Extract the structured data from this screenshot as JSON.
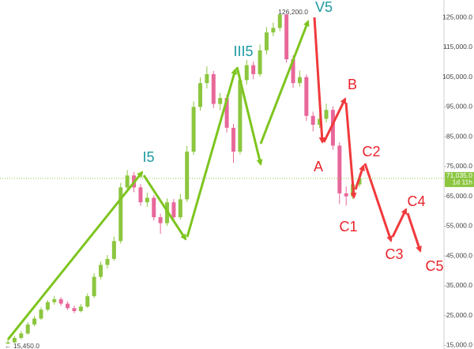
{
  "chart_data": {
    "type": "candlestick",
    "candles": [
      [
        15600,
        16900,
        15450,
        16000
      ],
      [
        16000,
        18200,
        15800,
        17500
      ],
      [
        17500,
        19800,
        17000,
        19000
      ],
      [
        19000,
        22800,
        18600,
        22000
      ],
      [
        22000,
        24900,
        21400,
        24000
      ],
      [
        24000,
        27800,
        23500,
        27000
      ],
      [
        27000,
        30200,
        26400,
        29500
      ],
      [
        29500,
        31600,
        28700,
        30500
      ],
      [
        30500,
        31200,
        28300,
        29000
      ],
      [
        29000,
        29800,
        26900,
        27500
      ],
      [
        27500,
        28300,
        25800,
        26500
      ],
      [
        26500,
        28900,
        26100,
        28000
      ],
      [
        28000,
        32400,
        27600,
        31500
      ],
      [
        31500,
        39200,
        31000,
        38000
      ],
      [
        38000,
        43100,
        37200,
        42000
      ],
      [
        42000,
        45300,
        40800,
        44000
      ],
      [
        44000,
        51500,
        43400,
        50000
      ],
      [
        50000,
        69500,
        49200,
        68000
      ],
      [
        68000,
        73800,
        66500,
        72000
      ],
      [
        72000,
        73200,
        66400,
        68000
      ],
      [
        68000,
        69100,
        61800,
        63000
      ],
      [
        63000,
        66200,
        61500,
        64500
      ],
      [
        64500,
        65400,
        56900,
        58000
      ],
      [
        58000,
        59200,
        52400,
        56000
      ],
      [
        56000,
        64300,
        55100,
        63000
      ],
      [
        63000,
        64100,
        56800,
        58000
      ],
      [
        58000,
        65800,
        57200,
        64000
      ],
      [
        64000,
        81900,
        63100,
        80000
      ],
      [
        80000,
        96800,
        78900,
        95000
      ],
      [
        95000,
        104900,
        93800,
        103000
      ],
      [
        103000,
        108600,
        101200,
        106000
      ],
      [
        106000,
        107100,
        94600,
        96000
      ],
      [
        96000,
        99700,
        93900,
        98000
      ],
      [
        98000,
        99100,
        86400,
        88000
      ],
      [
        88000,
        89300,
        76200,
        80000
      ],
      [
        80000,
        105600,
        79100,
        104000
      ],
      [
        104000,
        110800,
        102500,
        109000
      ],
      [
        109000,
        110200,
        104300,
        106000
      ],
      [
        106000,
        115900,
        105200,
        114000
      ],
      [
        114000,
        121800,
        112600,
        120000
      ],
      [
        120000,
        123300,
        118700,
        121500
      ],
      [
        121500,
        126200,
        120400,
        126000
      ],
      [
        126000,
        126100,
        109800,
        111000
      ],
      [
        111000,
        112300,
        101400,
        103000
      ],
      [
        103000,
        107200,
        101800,
        105000
      ],
      [
        105000,
        105900,
        90300,
        92000
      ],
      [
        92000,
        93400,
        86800,
        89000
      ],
      [
        89000,
        92600,
        87900,
        91000
      ],
      [
        91000,
        96100,
        89800,
        94000
      ],
      [
        94000,
        95200,
        80600,
        82000
      ],
      [
        82000,
        83100,
        62400,
        66000
      ],
      [
        66000,
        68300,
        61900,
        65000
      ],
      [
        65000,
        70800,
        64100,
        69000
      ],
      [
        69000,
        72600,
        68200,
        71035
      ]
    ],
    "up_color": "#8cc63f",
    "down_color": "#e8689a",
    "ylim": [
      13785,
      130875
    ],
    "yticks": [
      {
        "value": 15000,
        "label": "15,000.0"
      },
      {
        "value": 25000,
        "label": "25,000.0"
      },
      {
        "value": 35000,
        "label": "35,000.0"
      },
      {
        "value": 45000,
        "label": "45,000.0"
      },
      {
        "value": 55000,
        "label": "55,000.0"
      },
      {
        "value": 65000,
        "label": "65,000.0"
      },
      {
        "value": 75000,
        "label": "75,000.0"
      },
      {
        "value": 85000,
        "label": "85,000.0"
      },
      {
        "value": 95000,
        "label": "95,000.0"
      },
      {
        "value": 105000,
        "label": "105,000.0"
      },
      {
        "value": 115000,
        "label": "115,000.0"
      },
      {
        "value": 125000,
        "label": "125,000.0"
      }
    ],
    "current_price": {
      "value": 71035,
      "label": "71,035.0"
    },
    "countdown": "1d 11h",
    "high_label": {
      "value": 126200,
      "label": "126,200.0"
    },
    "low_label": {
      "value": 15450,
      "label": "← 15,450.0"
    },
    "wave_labels": [
      "I5",
      "III5",
      "V5",
      "A",
      "B",
      "C1",
      "C2",
      "C3",
      "C4",
      "C5"
    ],
    "impulse_color": "#1b9aa0",
    "correction_color": "#e8232b"
  }
}
